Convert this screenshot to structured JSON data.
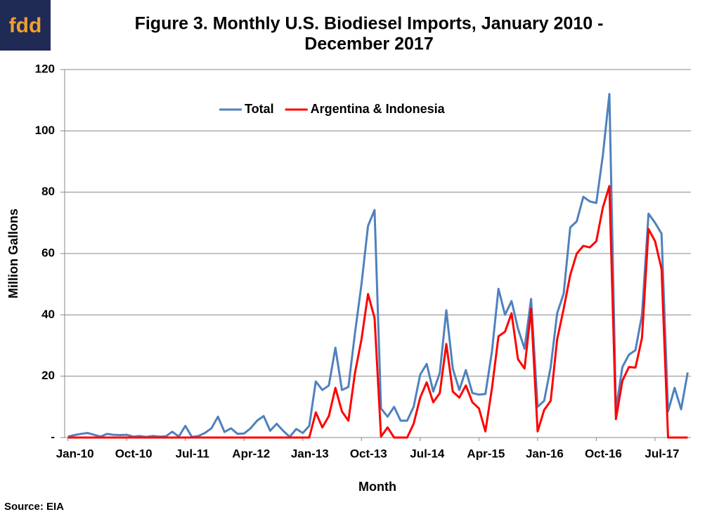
{
  "logo": "fdd",
  "source": "Source: EIA",
  "chart_data": {
    "type": "line",
    "title": [
      "Figure 3. Monthly U.S. Biodiesel Imports, January 2010 -",
      "December 2017"
    ],
    "x_label": "Month",
    "y_label": "Million Gallons",
    "categories": [
      "Jan-10",
      null,
      null,
      null,
      null,
      null,
      null,
      null,
      null,
      "Oct-10",
      null,
      null,
      null,
      null,
      null,
      null,
      null,
      null,
      "Jul-11",
      null,
      null,
      null,
      null,
      null,
      null,
      null,
      null,
      "Apr-12",
      null,
      null,
      null,
      null,
      null,
      null,
      null,
      null,
      "Jan-13",
      null,
      null,
      null,
      null,
      null,
      null,
      null,
      null,
      "Oct-13",
      null,
      null,
      null,
      null,
      null,
      null,
      null,
      null,
      "Jul-14",
      null,
      null,
      null,
      null,
      null,
      null,
      null,
      null,
      "Apr-15",
      null,
      null,
      null,
      null,
      null,
      null,
      null,
      null,
      "Jan-16",
      null,
      null,
      null,
      null,
      null,
      null,
      null,
      null,
      "Oct-16",
      null,
      null,
      null,
      null,
      null,
      null,
      null,
      null,
      "Jul-17",
      null,
      null,
      null,
      null,
      null
    ],
    "series": [
      {
        "name": "Total",
        "color": "#4f81bd",
        "values": [
          0.3,
          0.8,
          1.2,
          1.5,
          0.9,
          0.3,
          1.2,
          0.9,
          0.8,
          0.9,
          0.3,
          0.5,
          0.2,
          0.5,
          0.3,
          0.4,
          1.9,
          0.3,
          3.8,
          0.2,
          0.5,
          1.5,
          3,
          6.8,
          1.8,
          3,
          1.2,
          1.3,
          3,
          5.5,
          7,
          2.2,
          4.5,
          2.2,
          0.2,
          2.8,
          1.5,
          3.8,
          18.3,
          15.5,
          17,
          29.3,
          15.5,
          16.5,
          34,
          50,
          69,
          74.2,
          9.5,
          6.8,
          10,
          5.5,
          5.5,
          10,
          20.5,
          24,
          15,
          21,
          41.5,
          22.5,
          15.5,
          22,
          14.5,
          14,
          14.2,
          28,
          48.5,
          40,
          44.5,
          35.5,
          29,
          45.2,
          10,
          12,
          23,
          40.5,
          47,
          68.5,
          70.5,
          78.5,
          77,
          76.5,
          92,
          112,
          9,
          23,
          27,
          28.5,
          40,
          73,
          70,
          66.5,
          8.5,
          16.2,
          9.2,
          21.2
        ]
      },
      {
        "name": "Argentina & Indonesia",
        "color": "#ff0000",
        "values": [
          0,
          0,
          0,
          0,
          0,
          0,
          0,
          0,
          0,
          0,
          0,
          0,
          0,
          0,
          0,
          0,
          0,
          0,
          0,
          0,
          0,
          0,
          0,
          0,
          0,
          0,
          0,
          0,
          0,
          0,
          0,
          0,
          0,
          0,
          0,
          0,
          0,
          0,
          8.2,
          3.3,
          7,
          16.2,
          8.5,
          5.5,
          21,
          32,
          46.8,
          39,
          0.3,
          3.3,
          0,
          0,
          0,
          4.5,
          13,
          18,
          11.5,
          14.5,
          30.5,
          15,
          13,
          17,
          11.5,
          9.5,
          2,
          16,
          33,
          34.5,
          40.5,
          25.5,
          22.5,
          42,
          2,
          9,
          12,
          32,
          42,
          53,
          60,
          62.5,
          62,
          64,
          75,
          82,
          6,
          18.5,
          23,
          22.8,
          32.5,
          68,
          64,
          55,
          0,
          0,
          0,
          0
        ]
      }
    ],
    "ylim": [
      0,
      120
    ],
    "yticks": [
      {
        "value": 0,
        "label": "-"
      },
      20,
      40,
      60,
      80,
      100,
      120
    ],
    "grid": true,
    "legend": "top"
  }
}
